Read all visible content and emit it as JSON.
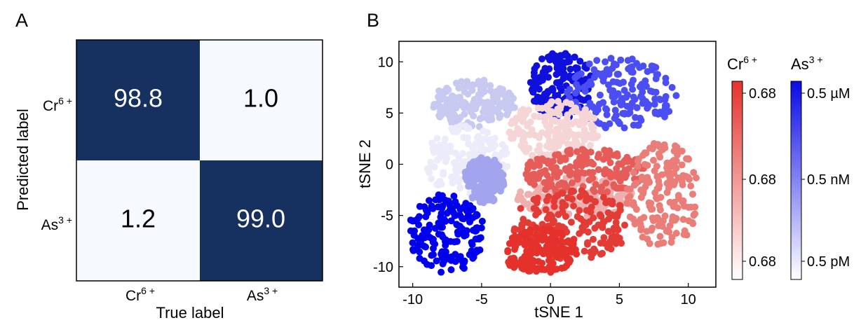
{
  "panels": {
    "a": {
      "letter": "A"
    },
    "b": {
      "letter": "B"
    }
  },
  "chart_data": [
    {
      "type": "heatmap",
      "panel": "A",
      "xlabel": "True label",
      "ylabel": "Predicted label",
      "x_categories": [
        {
          "base": "Cr",
          "sup": "6 +"
        },
        {
          "base": "As",
          "sup": "3 +"
        }
      ],
      "y_categories": [
        {
          "base": "Cr",
          "sup": "6 +"
        },
        {
          "base": "As",
          "sup": "3 +"
        }
      ],
      "values": [
        [
          "98.8",
          "1.0"
        ],
        [
          "1.2",
          "99.0"
        ]
      ],
      "colors": {
        "high": "#16305f",
        "low": "#f6f9fd",
        "text_on_high": "#ffffff",
        "text_on_low": "#000000"
      }
    },
    {
      "type": "scatter",
      "panel": "B",
      "xlabel": "tSNE 1",
      "ylabel": "tSNE 2",
      "xlim": [
        -11,
        12
      ],
      "ylim": [
        -12,
        12
      ],
      "xticks": [
        -10,
        -5,
        0,
        5,
        10
      ],
      "yticks": [
        -10,
        -5,
        0,
        5,
        10
      ],
      "grid": false,
      "clusters": [
        {
          "name": "blue-top-left",
          "color": "#1010dd",
          "x": [
            -1.5,
            3.0
          ],
          "y": [
            4.5,
            11.0
          ]
        },
        {
          "name": "blue-top-right",
          "color": "#4b4ef2",
          "x": [
            1.2,
            9.2
          ],
          "y": [
            3.3,
            10.6
          ]
        },
        {
          "name": "lavender-upper-left",
          "color": "#c7c9f1",
          "x": [
            -8.7,
            -2.5
          ],
          "y": [
            3.6,
            8.3
          ]
        },
        {
          "name": "white-left",
          "color": "#ebebfa",
          "x": [
            -9.2,
            -3.0
          ],
          "y": [
            -3.0,
            3.8
          ]
        },
        {
          "name": "pale-blue-left",
          "color": "#a2a5ee",
          "x": [
            -6.3,
            -3.3
          ],
          "y": [
            -3.8,
            0.7
          ]
        },
        {
          "name": "blue-bottom-left",
          "color": "#0000ee",
          "x": [
            -10.3,
            -4.8
          ],
          "y": [
            -10.7,
            -2.8
          ]
        },
        {
          "name": "pale-pink-center",
          "color": "#f5d5d5",
          "x": [
            -3.0,
            3.5
          ],
          "y": [
            0.5,
            6.2
          ]
        },
        {
          "name": "pink-center-left",
          "color": "#efafaf",
          "x": [
            -2.4,
            6.2
          ],
          "y": [
            -5.3,
            -1.2
          ]
        },
        {
          "name": "red-center",
          "color": "#e55c58",
          "x": [
            -2.0,
            7.0
          ],
          "y": [
            -3.0,
            1.5
          ]
        },
        {
          "name": "salmon-right",
          "color": "#ea7d78",
          "x": [
            5.5,
            10.8
          ],
          "y": [
            -8.2,
            2.2
          ]
        },
        {
          "name": "red-arc",
          "color": "#e33c36",
          "x": [
            -2.7,
            5.8
          ],
          "y": [
            -9.3,
            -2.5
          ]
        },
        {
          "name": "red-bottom",
          "color": "#e5312b",
          "x": [
            -3.6,
            2.0
          ],
          "y": [
            -10.7,
            -6.2
          ]
        }
      ],
      "colorbars": [
        {
          "title": {
            "base": "Cr",
            "sup": "6 +"
          },
          "ticks": [
            "0.68",
            "0.68",
            "0.68"
          ],
          "color_top": "#e5332d",
          "color_bottom": "#ffffff"
        },
        {
          "title": {
            "base": "As",
            "sup": "3 +"
          },
          "ticks": [
            "0.5 µM",
            "0.5 nM",
            "0.5 pM"
          ],
          "color_top": "#0a0ae6",
          "color_bottom": "#ffffff"
        }
      ]
    }
  ]
}
